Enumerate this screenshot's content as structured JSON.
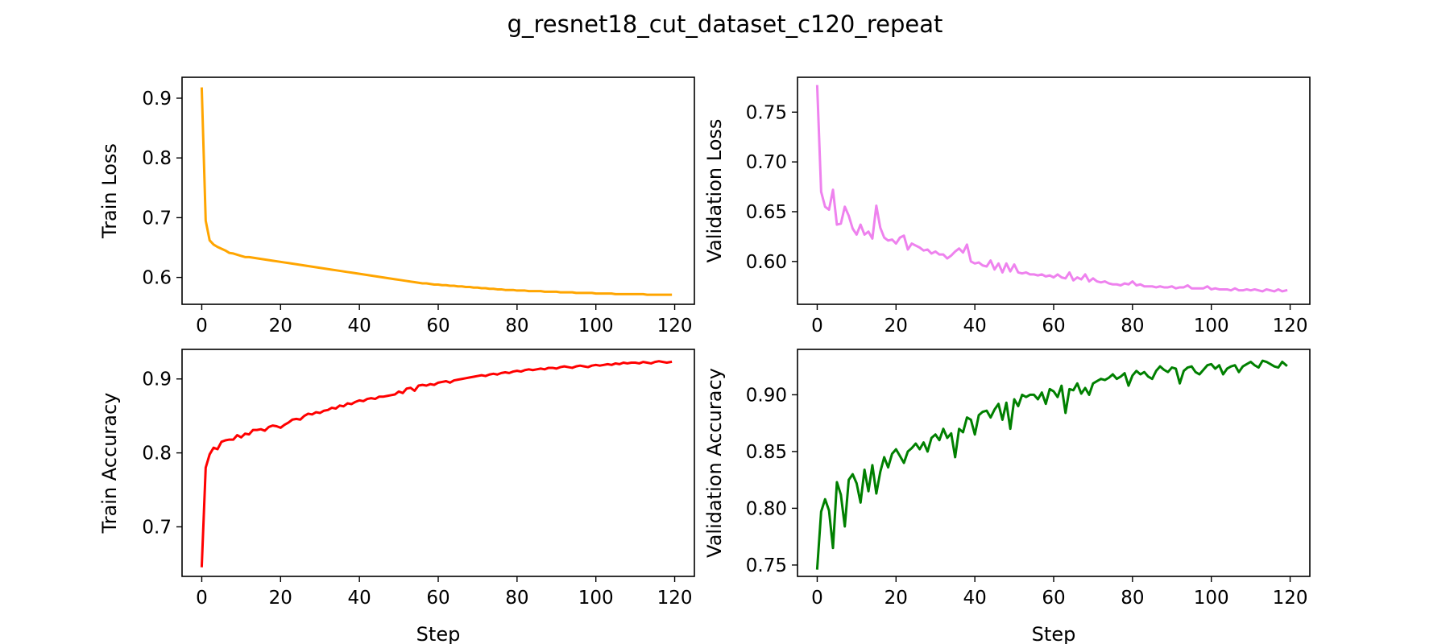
{
  "title": "g_resnet18_cut_dataset_c120_repeat",
  "chart_data": [
    {
      "id": "train-loss",
      "type": "line",
      "xlabel": "",
      "ylabel": "Train Loss",
      "color": "#FFA500",
      "xlim": [
        -5,
        125
      ],
      "ylim": [
        0.555,
        0.935
      ],
      "xticks": [
        0,
        20,
        40,
        60,
        80,
        100,
        120
      ],
      "yticks": [
        0.6,
        0.7,
        0.8,
        0.9
      ],
      "ytick_decimals": 1,
      "x_start": 0,
      "values": [
        0.916,
        0.695,
        0.662,
        0.655,
        0.651,
        0.648,
        0.645,
        0.641,
        0.64,
        0.638,
        0.636,
        0.634,
        0.634,
        0.633,
        0.632,
        0.631,
        0.63,
        0.629,
        0.628,
        0.627,
        0.626,
        0.625,
        0.624,
        0.623,
        0.622,
        0.621,
        0.62,
        0.619,
        0.618,
        0.617,
        0.616,
        0.615,
        0.614,
        0.613,
        0.612,
        0.611,
        0.61,
        0.609,
        0.608,
        0.607,
        0.606,
        0.605,
        0.604,
        0.603,
        0.602,
        0.601,
        0.6,
        0.599,
        0.598,
        0.597,
        0.596,
        0.595,
        0.594,
        0.593,
        0.592,
        0.591,
        0.59,
        0.59,
        0.589,
        0.588,
        0.588,
        0.587,
        0.587,
        0.586,
        0.586,
        0.585,
        0.585,
        0.584,
        0.584,
        0.583,
        0.583,
        0.582,
        0.582,
        0.581,
        0.581,
        0.58,
        0.58,
        0.579,
        0.579,
        0.579,
        0.578,
        0.578,
        0.578,
        0.577,
        0.577,
        0.577,
        0.577,
        0.576,
        0.576,
        0.576,
        0.576,
        0.575,
        0.575,
        0.575,
        0.575,
        0.574,
        0.574,
        0.574,
        0.574,
        0.574,
        0.573,
        0.573,
        0.573,
        0.573,
        0.573,
        0.572,
        0.572,
        0.572,
        0.572,
        0.572,
        0.572,
        0.572,
        0.572,
        0.571,
        0.571,
        0.571,
        0.571,
        0.571,
        0.571,
        0.571
      ]
    },
    {
      "id": "validation-loss",
      "type": "line",
      "xlabel": "",
      "ylabel": "Validation Loss",
      "color": "#EE82EE",
      "xlim": [
        -5,
        125
      ],
      "ylim": [
        0.557,
        0.785
      ],
      "xticks": [
        0,
        20,
        40,
        60,
        80,
        100,
        120
      ],
      "yticks": [
        0.6,
        0.65,
        0.7,
        0.75
      ],
      "ytick_decimals": 2,
      "x_start": 0,
      "values": [
        0.776,
        0.67,
        0.655,
        0.652,
        0.672,
        0.637,
        0.638,
        0.655,
        0.646,
        0.633,
        0.627,
        0.637,
        0.627,
        0.63,
        0.623,
        0.656,
        0.634,
        0.624,
        0.621,
        0.622,
        0.618,
        0.624,
        0.626,
        0.612,
        0.618,
        0.616,
        0.614,
        0.611,
        0.612,
        0.608,
        0.61,
        0.607,
        0.607,
        0.603,
        0.606,
        0.61,
        0.613,
        0.609,
        0.617,
        0.6,
        0.598,
        0.599,
        0.596,
        0.595,
        0.601,
        0.592,
        0.598,
        0.589,
        0.598,
        0.59,
        0.597,
        0.589,
        0.588,
        0.589,
        0.587,
        0.587,
        0.586,
        0.587,
        0.585,
        0.586,
        0.584,
        0.587,
        0.584,
        0.583,
        0.589,
        0.581,
        0.584,
        0.582,
        0.587,
        0.58,
        0.583,
        0.58,
        0.579,
        0.58,
        0.578,
        0.577,
        0.577,
        0.576,
        0.578,
        0.577,
        0.58,
        0.576,
        0.577,
        0.575,
        0.575,
        0.575,
        0.574,
        0.575,
        0.574,
        0.574,
        0.575,
        0.573,
        0.574,
        0.574,
        0.576,
        0.573,
        0.573,
        0.573,
        0.573,
        0.575,
        0.572,
        0.573,
        0.572,
        0.572,
        0.572,
        0.571,
        0.573,
        0.571,
        0.571,
        0.572,
        0.571,
        0.572,
        0.571,
        0.57,
        0.572,
        0.571,
        0.57,
        0.572,
        0.57,
        0.571
      ]
    },
    {
      "id": "train-accuracy",
      "type": "line",
      "xlabel": "Step",
      "ylabel": "Train Accuracy",
      "color": "#FF0000",
      "xlim": [
        -5,
        125
      ],
      "ylim": [
        0.633,
        0.94
      ],
      "xticks": [
        0,
        20,
        40,
        60,
        80,
        100,
        120
      ],
      "yticks": [
        0.7,
        0.8,
        0.9
      ],
      "ytick_decimals": 1,
      "x_start": 0,
      "values": [
        0.647,
        0.78,
        0.798,
        0.807,
        0.805,
        0.815,
        0.817,
        0.818,
        0.818,
        0.824,
        0.821,
        0.826,
        0.825,
        0.831,
        0.831,
        0.832,
        0.83,
        0.835,
        0.837,
        0.836,
        0.834,
        0.838,
        0.841,
        0.845,
        0.846,
        0.845,
        0.85,
        0.853,
        0.852,
        0.855,
        0.854,
        0.857,
        0.858,
        0.861,
        0.86,
        0.864,
        0.863,
        0.867,
        0.866,
        0.869,
        0.871,
        0.87,
        0.873,
        0.874,
        0.873,
        0.876,
        0.876,
        0.877,
        0.878,
        0.879,
        0.883,
        0.881,
        0.887,
        0.888,
        0.884,
        0.891,
        0.892,
        0.891,
        0.893,
        0.892,
        0.895,
        0.896,
        0.897,
        0.895,
        0.898,
        0.899,
        0.9,
        0.901,
        0.902,
        0.903,
        0.904,
        0.905,
        0.904,
        0.906,
        0.907,
        0.906,
        0.908,
        0.909,
        0.908,
        0.91,
        0.911,
        0.91,
        0.912,
        0.913,
        0.912,
        0.913,
        0.914,
        0.913,
        0.915,
        0.915,
        0.914,
        0.916,
        0.917,
        0.916,
        0.915,
        0.917,
        0.918,
        0.917,
        0.916,
        0.918,
        0.919,
        0.918,
        0.919,
        0.92,
        0.919,
        0.921,
        0.92,
        0.922,
        0.921,
        0.922,
        0.922,
        0.921,
        0.923,
        0.922,
        0.921,
        0.923,
        0.924,
        0.923,
        0.922,
        0.923
      ]
    },
    {
      "id": "validation-accuracy",
      "type": "line",
      "xlabel": "Step",
      "ylabel": "Validation Accuracy",
      "color": "#008000",
      "xlim": [
        -5,
        125
      ],
      "ylim": [
        0.74,
        0.94
      ],
      "xticks": [
        0,
        20,
        40,
        60,
        80,
        100,
        120
      ],
      "yticks": [
        0.75,
        0.8,
        0.85,
        0.9
      ],
      "ytick_decimals": 2,
      "x_start": 0,
      "values": [
        0.747,
        0.797,
        0.808,
        0.798,
        0.765,
        0.823,
        0.812,
        0.784,
        0.825,
        0.83,
        0.822,
        0.805,
        0.834,
        0.815,
        0.838,
        0.813,
        0.832,
        0.845,
        0.836,
        0.848,
        0.852,
        0.846,
        0.84,
        0.85,
        0.853,
        0.857,
        0.852,
        0.858,
        0.85,
        0.862,
        0.865,
        0.86,
        0.87,
        0.862,
        0.866,
        0.845,
        0.87,
        0.867,
        0.88,
        0.878,
        0.865,
        0.882,
        0.885,
        0.886,
        0.88,
        0.887,
        0.892,
        0.878,
        0.893,
        0.87,
        0.896,
        0.89,
        0.9,
        0.898,
        0.9,
        0.9,
        0.896,
        0.902,
        0.892,
        0.905,
        0.903,
        0.898,
        0.908,
        0.884,
        0.905,
        0.904,
        0.91,
        0.901,
        0.906,
        0.9,
        0.91,
        0.912,
        0.914,
        0.913,
        0.915,
        0.918,
        0.914,
        0.916,
        0.919,
        0.908,
        0.917,
        0.921,
        0.918,
        0.92,
        0.916,
        0.914,
        0.921,
        0.925,
        0.922,
        0.92,
        0.924,
        0.923,
        0.91,
        0.921,
        0.924,
        0.925,
        0.92,
        0.918,
        0.922,
        0.926,
        0.927,
        0.923,
        0.926,
        0.918,
        0.923,
        0.925,
        0.926,
        0.92,
        0.925,
        0.927,
        0.929,
        0.926,
        0.924,
        0.93,
        0.929,
        0.927,
        0.925,
        0.924,
        0.929,
        0.926
      ]
    }
  ]
}
